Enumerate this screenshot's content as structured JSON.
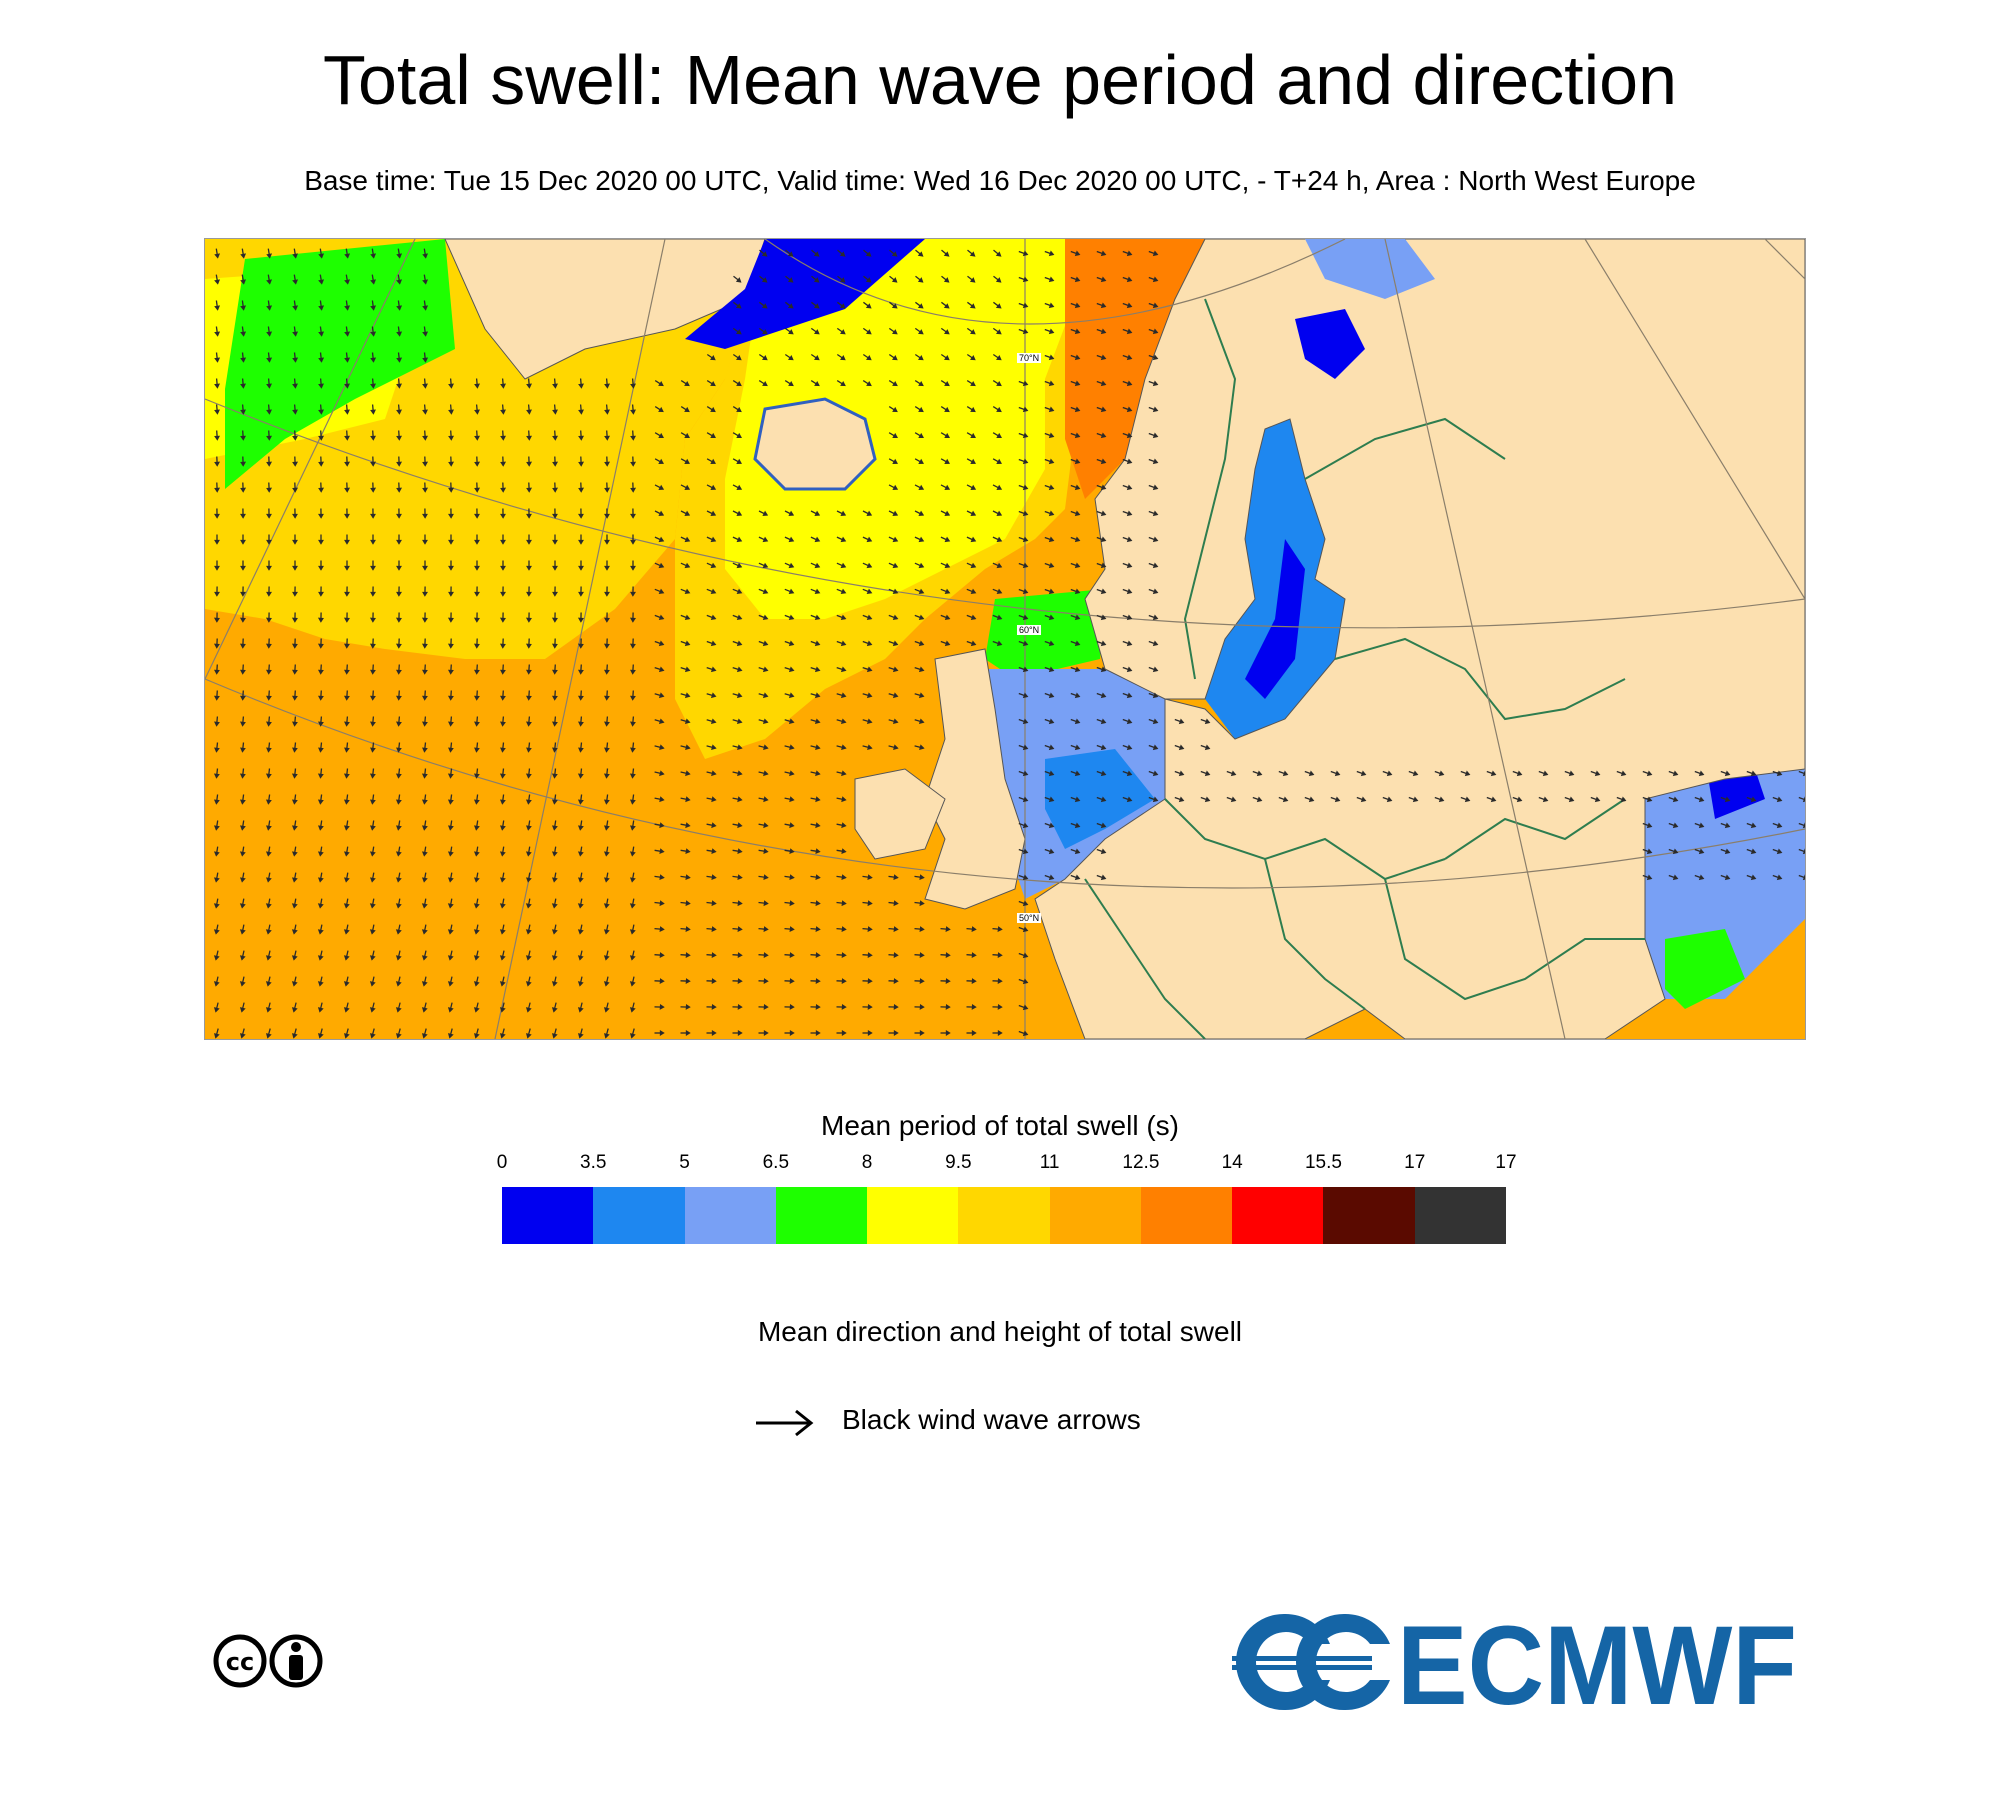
{
  "header": {
    "title": "Total swell: Mean wave period and direction",
    "subtitle": "Base time: Tue 15 Dec 2020 00 UTC, Valid time: Wed 16 Dec 2020 00 UTC, - T+24 h, Area : North West Europe"
  },
  "map": {
    "area": "North West Europe",
    "latitude_labels": [
      "70°N",
      "60°N",
      "50°N"
    ],
    "land_color": "#fce0b0",
    "border_color": "#2e7d4f",
    "arrow_color": "#2b2b2b"
  },
  "colorbar": {
    "title": "Mean period of total swell (s)",
    "ticks": [
      "0",
      "3.5",
      "5",
      "6.5",
      "8",
      "9.5",
      "11",
      "12.5",
      "14",
      "15.5",
      "17",
      "17"
    ],
    "colors": [
      "#0000f0",
      "#1e87f0",
      "#78a0f5",
      "#1eff00",
      "#ffff00",
      "#ffd700",
      "#ffaa00",
      "#ff8000",
      "#ff0000",
      "#5a0a00",
      "#333333"
    ]
  },
  "legend": {
    "arrows_title": "Mean direction and height of total swell",
    "arrow_label": "Black wind wave arrows"
  },
  "logos": {
    "license": "CC BY",
    "organisation": "ECMWF",
    "organisation_color": "#1565a6"
  }
}
